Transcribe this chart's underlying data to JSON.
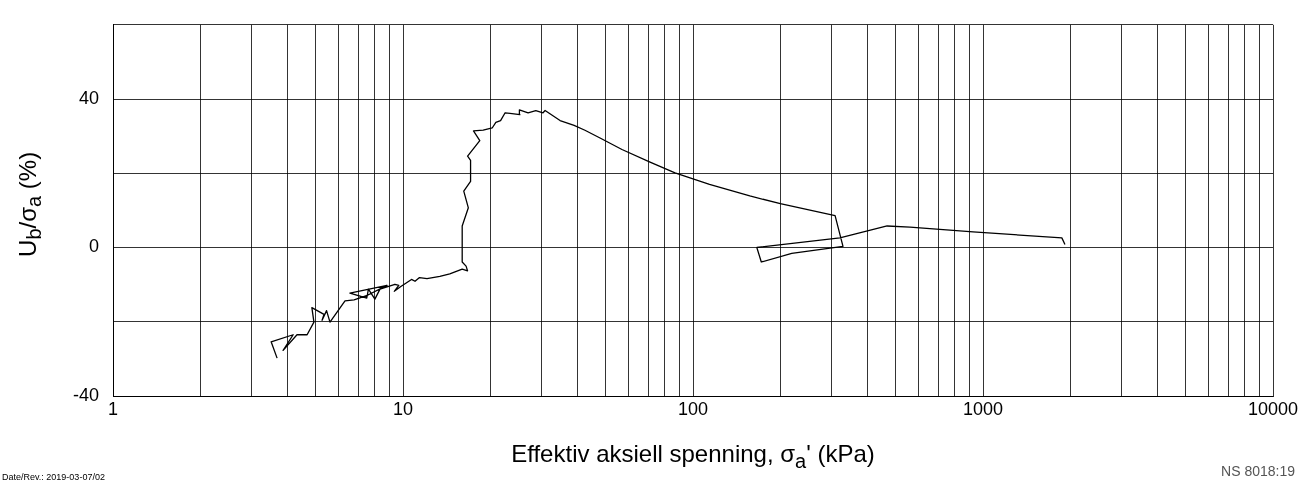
{
  "chart_data": {
    "type": "line",
    "xlabel": "Effektiv aksiell spenning, σ$_{a}$'   (kPa)",
    "ylabel": "U$_{b}$/σ$_{a}$  (%)",
    "annotations": [
      "Date/Rev.: 2019-03-07/02",
      "NS 8018:19"
    ],
    "log": "x",
    "grid": true,
    "legend": false,
    "marker": "none",
    "line_style": "solid",
    "xlim": [
      1,
      10000
    ],
    "ylim": [
      -40,
      60
    ],
    "xticks": [
      1,
      {
        "value": 2,
        "label": null
      },
      {
        "value": 3,
        "label": null
      },
      {
        "value": 4,
        "label": null
      },
      {
        "value": 5,
        "label": null
      },
      {
        "value": 6,
        "label": null
      },
      {
        "value": 7,
        "label": null
      },
      {
        "value": 8,
        "label": null
      },
      {
        "value": 9,
        "label": null
      },
      10,
      {
        "value": 20,
        "label": null
      },
      {
        "value": 30,
        "label": null
      },
      {
        "value": 40,
        "label": null
      },
      {
        "value": 50,
        "label": null
      },
      {
        "value": 60,
        "label": null
      },
      {
        "value": 70,
        "label": null
      },
      {
        "value": 80,
        "label": null
      },
      {
        "value": 90,
        "label": null
      },
      100,
      {
        "value": 200,
        "label": null
      },
      {
        "value": 300,
        "label": null
      },
      {
        "value": 400,
        "label": null
      },
      {
        "value": 500,
        "label": null
      },
      {
        "value": 600,
        "label": null
      },
      {
        "value": 700,
        "label": null
      },
      {
        "value": 800,
        "label": null
      },
      {
        "value": 900,
        "label": null
      },
      1000,
      {
        "value": 2000,
        "label": null
      },
      {
        "value": 3000,
        "label": null
      },
      {
        "value": 4000,
        "label": null
      },
      {
        "value": 5000,
        "label": null
      },
      {
        "value": 6000,
        "label": null
      },
      {
        "value": 7000,
        "label": null
      },
      {
        "value": 8000,
        "label": null
      },
      {
        "value": 9000,
        "label": null
      },
      10000
    ],
    "yticks": [
      -40,
      {
        "value": -20,
        "label": null
      },
      0,
      {
        "value": 20,
        "label": null
      },
      40,
      {
        "value": 60,
        "label": null
      }
    ],
    "series": [
      {
        "color": "#000000",
        "x": [
          3.68,
          3.51,
          4.18,
          3.86,
          4.31,
          4.67,
          4.93,
          4.85,
          5.34,
          5.26,
          5.45,
          5.6,
          6.31,
          6.78,
          7.57,
          8.81,
          6.56,
          7.5,
          7.6,
          8.0,
          8.33,
          9.38,
          9.67,
          9.33,
          9.83,
          10.7,
          11.0,
          11.4,
          12.1,
          13.4,
          14.5,
          16.0,
          16.7,
          16.5,
          16.0,
          16.0,
          16.8,
          16.2,
          17.1,
          17.1,
          16.7,
          18.4,
          17.5,
          18.9,
          20.3,
          20.9,
          21.7,
          22.5,
          25.3,
          25.2,
          27.0,
          28.7,
          30.4,
          30.9,
          34.8,
          38.9,
          42.4,
          47.8,
          56.9,
          71.1,
          86.7,
          114,
          157,
          200,
          309,
          329,
          219,
          172,
          166,
          321,
          467,
          560,
          924,
          1870,
          1917
        ],
        "values": [
          -29.8,
          -25.4,
          -23.5,
          -27.7,
          -23.5,
          -23.5,
          -20.1,
          -16.2,
          -18.0,
          -19.6,
          -17.0,
          -20.1,
          -14.4,
          -14.1,
          -12.8,
          -10.2,
          -12.3,
          -13.6,
          -11.2,
          -13.9,
          -11.2,
          -9.9,
          -10.2,
          -11.8,
          -10.5,
          -8.6,
          -9.1,
          -8.1,
          -8.4,
          -7.8,
          -7.1,
          -5.8,
          -6.3,
          -5.0,
          -3.9,
          5.8,
          10.7,
          15.2,
          17.8,
          23.5,
          24.6,
          28.8,
          31.4,
          31.6,
          32.2,
          33.7,
          34.2,
          36.3,
          35.8,
          37.1,
          36.3,
          36.9,
          36.3,
          36.9,
          34.2,
          32.9,
          31.6,
          29.5,
          26.4,
          23.0,
          20.1,
          17.0,
          13.9,
          11.8,
          8.6,
          0.3,
          -1.6,
          -3.9,
          0,
          2.6,
          5.8,
          5.5,
          4.2,
          2.6,
          0.8
        ]
      }
    ]
  }
}
